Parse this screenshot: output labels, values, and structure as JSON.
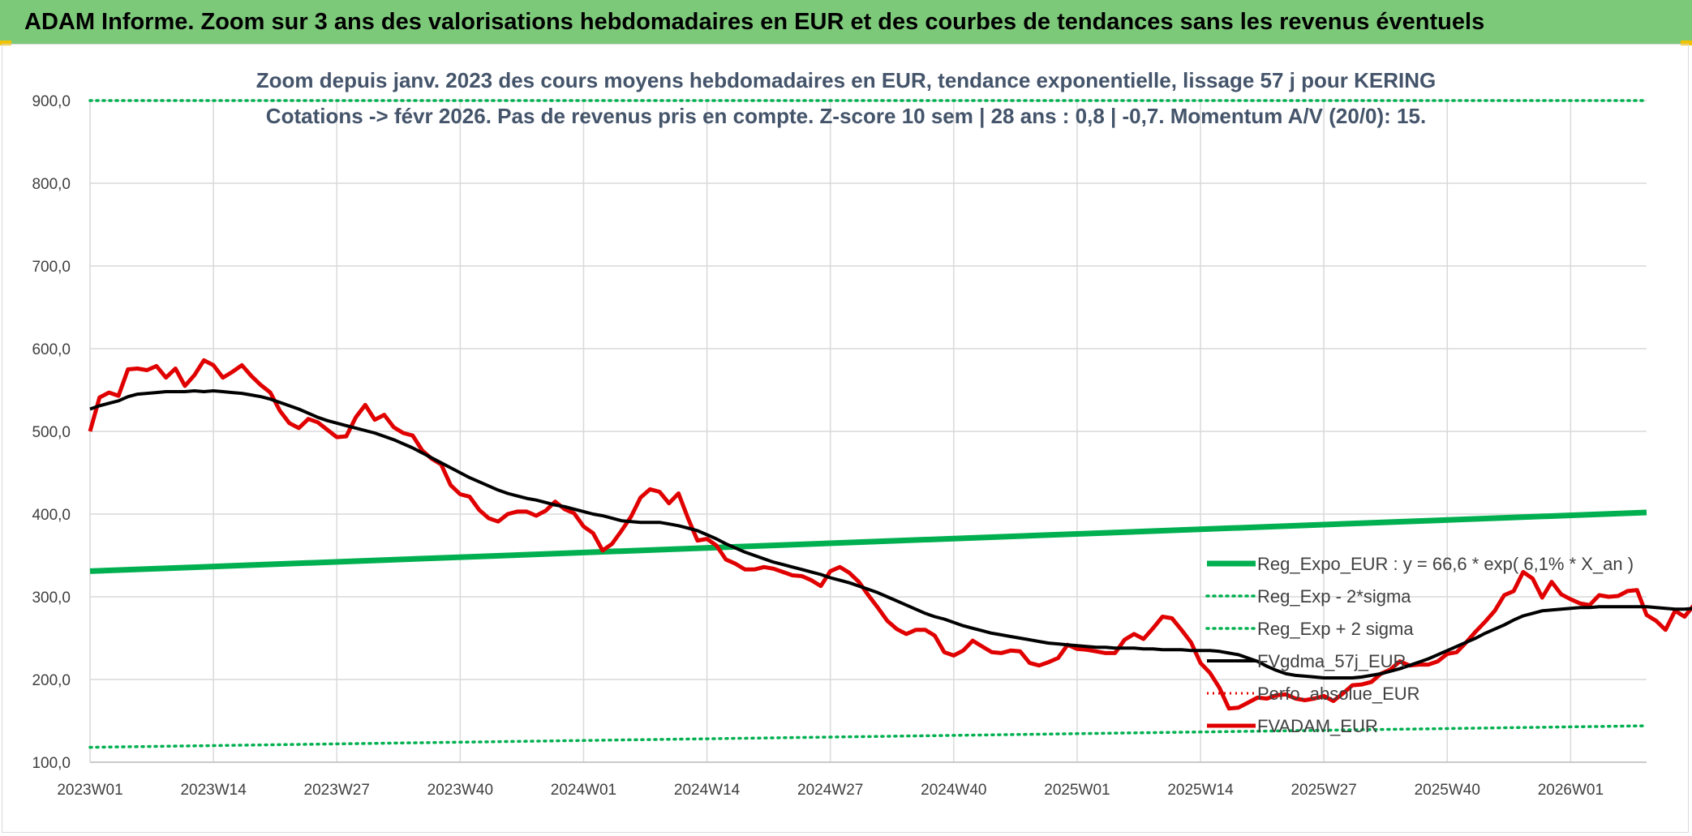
{
  "page_title": "ADAM Informe. Zoom sur 3 ans des valorisations hebdomadaires en EUR et des courbes de tendances sans les revenus éventuels",
  "colors": {
    "banner": "#7dc97a",
    "reg_expo": "#00b050",
    "reg_bands": "#00b050",
    "fvgdma": "#000000",
    "perfo": "#e00000",
    "fvadam": "#e00000",
    "grid": "#d9d9d9"
  },
  "chart_data": {
    "type": "line",
    "title_line1": "Zoom depuis janv. 2023 des cours moyens hebdomadaires en EUR, tendance exponentielle, lissage 57 j pour KERING",
    "title_line2": "Cotations -> févr 2026. Pas de revenus pris en compte. Z-score 10 sem | 28 ans : 0,8 | -0,7. Momentum A/V (20/0): 15.",
    "ylim": [
      100,
      900
    ],
    "y_ticks": [
      "100,0",
      "200,0",
      "300,0",
      "400,0",
      "500,0",
      "600,0",
      "700,0",
      "800,0",
      "900,0"
    ],
    "x_ticks": [
      "2023W01",
      "2023W14",
      "2023W27",
      "2023W40",
      "2024W01",
      "2024W14",
      "2024W27",
      "2024W40",
      "2025W01",
      "2025W14",
      "2025W27",
      "2025W40",
      "2026W01"
    ],
    "x_tick_weeks": [
      0,
      13,
      26,
      39,
      52,
      65,
      78,
      91,
      104,
      117,
      130,
      143,
      156
    ],
    "week_count": 164,
    "legend_position": "right-bottom",
    "grid": true,
    "legend": [
      "Reg_Expo_EUR : y = 66,6 * exp( 6,1% *  X_an )",
      "Reg_Exp - 2*sigma",
      "Reg_Exp + 2 sigma",
      "FVgdma_57j_EUR",
      "Perfo. absolue_EUR",
      "FVADAM_EUR"
    ],
    "series": [
      {
        "name": "Reg_Expo_EUR",
        "style": "solid-thick",
        "x_week": [
          0,
          164
        ],
        "y": [
          331,
          402
        ]
      },
      {
        "name": "Reg_Exp - 2*sigma",
        "style": "dotted",
        "x_week": [
          0,
          164
        ],
        "y": [
          118,
          144
        ]
      },
      {
        "name": "Reg_Exp + 2 sigma",
        "style": "dotted",
        "x_week": [
          0,
          164
        ],
        "y": [
          900,
          900
        ]
      },
      {
        "name": "FVgdma_57j_EUR",
        "style": "solid-medium",
        "y": [
          527,
          531,
          534,
          537,
          542,
          545,
          546,
          547,
          548,
          548,
          548,
          549,
          548,
          549,
          548,
          547,
          546,
          544,
          542,
          539,
          535,
          531,
          527,
          522,
          517,
          513,
          510,
          507,
          504,
          501,
          498,
          494,
          490,
          485,
          480,
          474,
          468,
          462,
          456,
          450,
          444,
          439,
          434,
          429,
          425,
          422,
          419,
          417,
          414,
          411,
          409,
          406,
          403,
          400,
          398,
          395,
          392,
          391,
          390,
          390,
          390,
          388,
          386,
          383,
          380,
          375,
          370,
          364,
          359,
          354,
          350,
          346,
          342,
          339,
          336,
          333,
          330,
          327,
          323,
          320,
          317,
          313,
          309,
          305,
          300,
          295,
          290,
          285,
          280,
          276,
          273,
          269,
          265,
          262,
          259,
          256,
          254,
          252,
          250,
          248,
          246,
          244,
          243,
          242,
          241,
          240,
          239,
          239,
          238,
          238,
          238,
          237,
          237,
          236,
          236,
          236,
          235,
          235,
          235,
          234,
          232,
          230,
          226,
          222,
          216,
          211,
          207,
          205,
          204,
          203,
          202,
          202,
          202,
          202,
          203,
          205,
          207,
          210,
          213,
          217,
          221,
          225,
          230,
          235,
          240,
          245,
          250,
          256,
          261,
          266,
          272,
          277,
          280,
          283,
          284,
          285,
          286,
          287,
          287,
          288,
          288,
          288,
          288,
          288,
          288,
          287,
          286,
          285,
          285,
          286
        ]
      },
      {
        "name": "Perfo. absolue_EUR",
        "style": "dotted-red",
        "x_week": [
          0,
          164
        ],
        "y": [
          null,
          null
        ]
      },
      {
        "name": "FVADAM_EUR",
        "style": "solid-thick-red",
        "y": [
          500,
          541,
          547,
          543,
          575,
          576,
          574,
          579,
          565,
          576,
          555,
          568,
          586,
          580,
          565,
          572,
          580,
          567,
          556,
          547,
          525,
          510,
          504,
          515,
          511,
          502,
          493,
          494,
          517,
          532,
          514,
          520,
          505,
          498,
          495,
          477,
          467,
          460,
          435,
          424,
          421,
          405,
          395,
          391,
          400,
          403,
          403,
          398,
          404,
          415,
          406,
          401,
          385,
          377,
          356,
          364,
          380,
          397,
          420,
          430,
          427,
          413,
          425,
          395,
          368,
          370,
          362,
          345,
          340,
          333,
          333,
          336,
          334,
          330,
          326,
          325,
          320,
          313,
          331,
          336,
          329,
          318,
          302,
          287,
          271,
          261,
          255,
          260,
          260,
          253,
          233,
          229,
          235,
          247,
          240,
          233,
          232,
          235,
          234,
          220,
          217,
          221,
          226,
          242,
          237,
          236,
          234,
          232,
          232,
          248,
          255,
          249,
          262,
          276,
          274,
          260,
          245,
          220,
          208,
          190,
          165,
          166,
          172,
          178,
          177,
          181,
          182,
          177,
          175,
          177,
          180,
          174,
          183,
          193,
          194,
          197,
          207,
          212,
          222,
          217,
          218,
          218,
          222,
          231,
          233,
          245,
          258,
          270,
          283,
          302,
          307,
          330,
          322,
          299,
          318,
          303,
          297,
          292,
          290,
          302,
          300,
          301,
          307,
          308,
          278,
          271,
          260,
          283,
          276,
          290
        ]
      }
    ]
  }
}
